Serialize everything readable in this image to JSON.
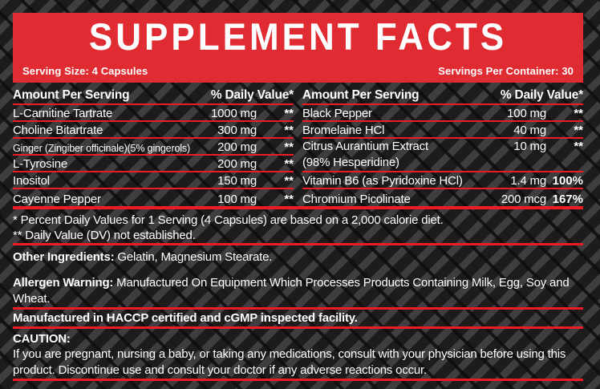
{
  "colors": {
    "accent_red": "#df2b31",
    "line_red": "#ed1c24",
    "background": "#1d1b1c"
  },
  "header": {
    "title": "SUPPLEMENT FACTS",
    "serving_size": "Serving Size: 4 Capsules",
    "servings_per_container": "Servings Per Container: 30"
  },
  "table": {
    "amount_header": "Amount Per Serving",
    "dv_header": "% Daily Value*",
    "left_rows": [
      {
        "name": "L-Carnitine Tartrate",
        "amount": "1000 mg",
        "dv": "**"
      },
      {
        "name": "Choline Bitartrate",
        "amount": "300 mg",
        "dv": "**"
      },
      {
        "name": "Ginger (Zingiber officinale)(5% gingerols)",
        "amount": "200 mg",
        "dv": "**"
      },
      {
        "name": "L-Tyrosine",
        "amount": "200 mg",
        "dv": "**"
      },
      {
        "name": "Inositol",
        "amount": "150 mg",
        "dv": "**"
      },
      {
        "name": "Cayenne Pepper",
        "amount": "100 mg",
        "dv": "**"
      }
    ],
    "right_rows": [
      {
        "name": "Black Pepper",
        "amount": "100 mg",
        "dv": "**"
      },
      {
        "name": "Bromelaine HCl",
        "amount": "40 mg",
        "dv": "**"
      },
      {
        "name": "Citrus Aurantium Extract",
        "subname": "(98% Hesperidine)",
        "amount": "10 mg",
        "dv": "**"
      },
      {
        "name": "Vitamin B6 (as Pyridoxine HCl)",
        "amount": "1.4 mg",
        "dv": "100%"
      },
      {
        "name": "Chromium Picolinate",
        "amount": "200 mcg",
        "dv": "167%"
      }
    ]
  },
  "footnotes": {
    "daily_value": "* Percent Daily Values for 1 Serving (4 Capsules) are based on a 2,000 calorie diet.",
    "not_established": "** Daily Value (DV) not established."
  },
  "other_ingredients": {
    "label": "Other Ingredients:",
    "text": " Gelatin, Magnesium Stearate."
  },
  "allergen": {
    "label": "Allergen Warning:",
    "text": " Manufactured On Equipment Which Processes Products Containing Milk, Egg, Soy and Wheat."
  },
  "manufactured": "Manufactured in HACCP certified and cGMP inspected facility.",
  "caution": {
    "label": "CAUTION:",
    "text": "If you are pregnant, nursing a baby, or taking any medications, consult with your physician before using this product. Discontinue use and consult your doctor if any adverse reactions occur."
  }
}
